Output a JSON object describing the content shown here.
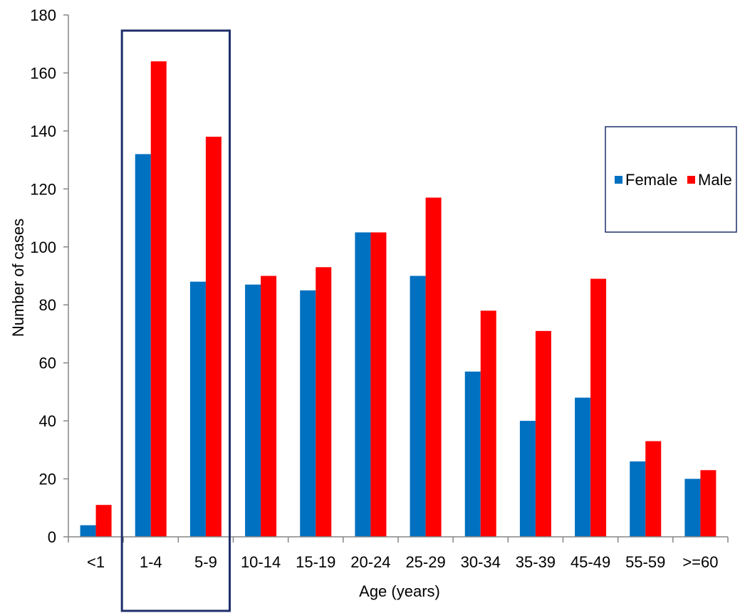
{
  "chart_data": {
    "type": "bar",
    "title": "",
    "xlabel": "Age (years)",
    "ylabel": "Number of cases",
    "categories": [
      "<1",
      "1-4",
      "5-9",
      "10-14",
      "15-19",
      "20-24",
      "25-29",
      "30-34",
      "35-39",
      "45-49",
      "55-59",
      ">=60"
    ],
    "series": [
      {
        "name": "Female",
        "color": "#0070C0",
        "values": [
          4,
          132,
          88,
          87,
          85,
          105,
          90,
          57,
          40,
          48,
          26,
          20
        ]
      },
      {
        "name": "Male",
        "color": "#FF0000",
        "values": [
          11,
          164,
          138,
          90,
          93,
          105,
          117,
          78,
          71,
          89,
          33,
          23
        ]
      }
    ],
    "ylim": [
      0,
      180
    ],
    "yticks": [
      0,
      20,
      40,
      60,
      80,
      100,
      120,
      140,
      160,
      180
    ],
    "grid": false,
    "legend_position": "right",
    "highlight": {
      "categories": [
        "1-4",
        "5-9"
      ],
      "color": "#1F2F6B"
    }
  }
}
